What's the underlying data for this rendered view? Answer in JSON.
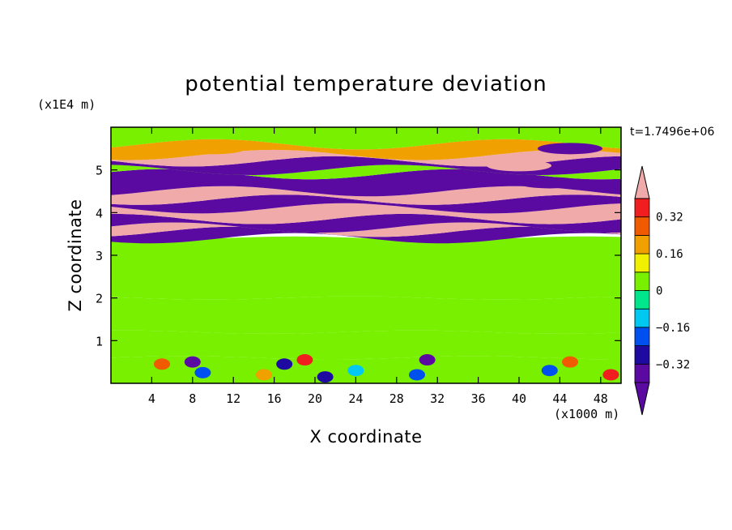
{
  "chart_data": {
    "type": "heatmap",
    "title": "potential temperature deviation",
    "time_label": "t=1.7496e+06",
    "xlabel": "X coordinate",
    "ylabel": "Z coordinate",
    "x_units": "(x1000 m)",
    "y_units": "(x1E4 m)",
    "x_ticks": [
      "4",
      "8",
      "12",
      "16",
      "20",
      "24",
      "28",
      "32",
      "36",
      "40",
      "44",
      "48"
    ],
    "y_ticks": [
      "1",
      "2",
      "3",
      "4",
      "5"
    ],
    "xlim": [
      0,
      50
    ],
    "ylim": [
      0,
      6
    ],
    "colorbar": {
      "levels": [
        -0.4,
        -0.32,
        -0.24,
        -0.16,
        -0.08,
        0,
        0.08,
        0.16,
        0.24,
        0.32,
        0.4
      ],
      "labels": [
        "0.32",
        "0.16",
        "0",
        "−0.16",
        "−0.32"
      ],
      "label_values": [
        0.32,
        0.16,
        0,
        -0.16,
        -0.32
      ],
      "colors": [
        "#5a0aa0",
        "#1e0aa0",
        "#0050f0",
        "#00c8f0",
        "#00e68c",
        "#78f000",
        "#f0f000",
        "#f0a000",
        "#f05a00",
        "#f01e1e",
        "#f0aaaa"
      ],
      "extend": "both"
    },
    "bands": [
      {
        "z0": 0.0,
        "z1": 0.6,
        "value": 0.02
      },
      {
        "z0": 0.6,
        "z1": 1.2,
        "value": 0.05
      },
      {
        "z0": 1.2,
        "z1": 2.0,
        "value": 0.03
      },
      {
        "z0": 2.0,
        "z1": 3.4,
        "value": 0.06
      },
      {
        "z0": 3.4,
        "z1": 3.55,
        "value": -0.42
      },
      {
        "z0": 3.55,
        "z1": 3.65,
        "value": 0.42
      },
      {
        "z0": 3.65,
        "z1": 3.85,
        "value": -0.42
      },
      {
        "z0": 3.85,
        "z1": 4.1,
        "value": 0.42
      },
      {
        "z0": 4.1,
        "z1": 4.3,
        "value": -0.42
      },
      {
        "z0": 4.3,
        "z1": 4.5,
        "value": 0.42
      },
      {
        "z0": 4.5,
        "z1": 4.9,
        "value": -0.42
      },
      {
        "z0": 4.9,
        "z1": 5.0,
        "value": 0.05
      },
      {
        "z0": 5.0,
        "z1": 5.2,
        "value": -0.42
      },
      {
        "z0": 5.2,
        "z1": 5.35,
        "value": 0.42
      },
      {
        "z0": 5.35,
        "z1": 5.6,
        "value": 0.18
      },
      {
        "z0": 5.6,
        "z1": 6.0,
        "value": 0.02
      }
    ],
    "blobs": [
      {
        "x": 5,
        "z": 0.45,
        "value": 0.3
      },
      {
        "x": 8,
        "z": 0.5,
        "value": -0.4
      },
      {
        "x": 9,
        "z": 0.25,
        "value": -0.2
      },
      {
        "x": 15,
        "z": 0.2,
        "value": 0.2
      },
      {
        "x": 17,
        "z": 0.45,
        "value": -0.3
      },
      {
        "x": 19,
        "z": 0.55,
        "value": 0.35
      },
      {
        "x": 21,
        "z": 0.15,
        "value": -0.3
      },
      {
        "x": 24,
        "z": 0.3,
        "value": -0.12
      },
      {
        "x": 30,
        "z": 0.2,
        "value": -0.2
      },
      {
        "x": 31,
        "z": 0.55,
        "value": -0.4
      },
      {
        "x": 43,
        "z": 0.3,
        "value": -0.2
      },
      {
        "x": 45,
        "z": 0.5,
        "value": 0.3
      },
      {
        "x": 49,
        "z": 0.2,
        "value": 0.35
      },
      {
        "x": 40,
        "z": 5.1,
        "value": 0.42
      },
      {
        "x": 45,
        "z": 5.5,
        "value": -0.42
      },
      {
        "x": 43,
        "z": 4.7,
        "value": -0.42
      },
      {
        "x": 10,
        "z": 5.5,
        "value": 0.18
      }
    ]
  }
}
